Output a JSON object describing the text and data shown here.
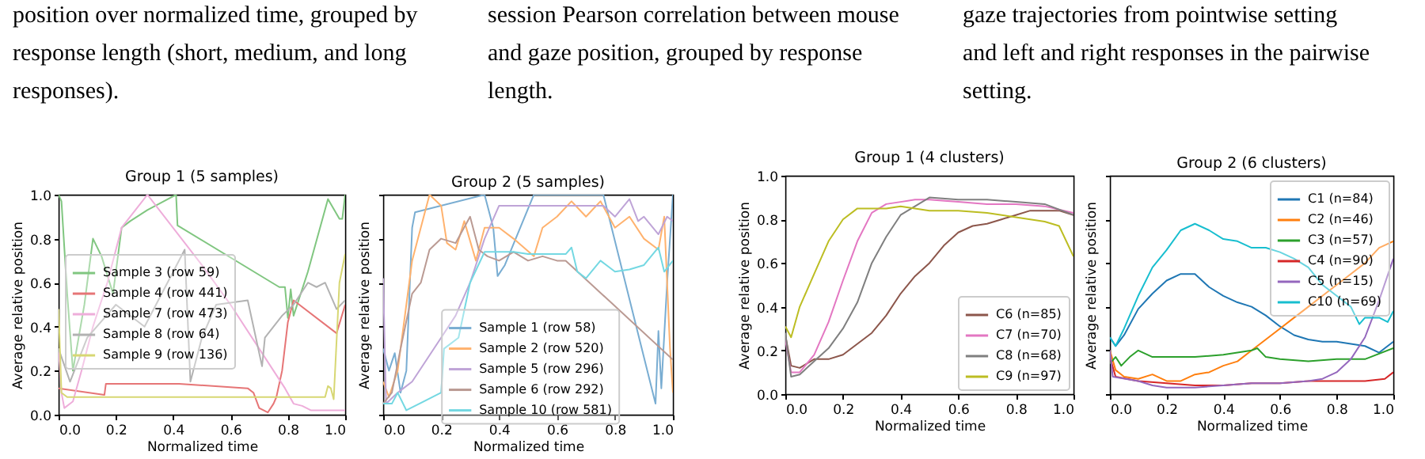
{
  "chart_data": [
    {
      "type": "other",
      "annotations": [
        "position over normalized time, grouped by response length (short, medium, and long responses).",
        "session Pearson correlation between mouse and gaze position, grouped by response length.",
        "gaze trajectories from pointwise setting and left and right responses in the pairwise setting."
      ]
    },
    {
      "type": "line",
      "title": "Group 1  (5 samples)",
      "xlabel": "Normalized time",
      "ylabel": "Average relative position",
      "xlim": [
        0,
        1
      ],
      "ylim": [
        0,
        1
      ],
      "xticks": [
        {
          "value": 0,
          "label": "0.0"
        },
        {
          "value": 0.2,
          "label": "0.2"
        },
        {
          "value": 0.4,
          "label": "0.4"
        },
        {
          "value": 0.6,
          "label": "0.6"
        },
        {
          "value": 0.8,
          "label": "0.8"
        },
        {
          "value": 1,
          "label": "1.0"
        }
      ],
      "yticks": [
        {
          "value": 0,
          "label": "0.0"
        },
        {
          "value": 0.2,
          "label": "0.2"
        },
        {
          "value": 0.4,
          "label": "0.4"
        },
        {
          "value": 0.6,
          "label": "0.6"
        },
        {
          "value": 0.8,
          "label": "0.8"
        },
        {
          "value": 1,
          "label": "1.0"
        }
      ],
      "legend": "left",
      "series": [
        {
          "name": "Sample 3 (row 59)",
          "color": "#80c680",
          "x": [
            0,
            0.01,
            0.03,
            0.05,
            0.07,
            0.09,
            0.12,
            0.15,
            0.19,
            0.22,
            0.25,
            0.31,
            0.41,
            0.415,
            0.77,
            0.79,
            0.8,
            0.81,
            0.82,
            0.87,
            0.94,
            0.98,
            0.99,
            1.0
          ],
          "values": [
            1.0,
            0.97,
            0.55,
            0.2,
            0.35,
            0.5,
            0.8,
            0.72,
            0.55,
            0.85,
            0.88,
            0.93,
            1.0,
            0.86,
            0.58,
            0.58,
            0.44,
            0.57,
            0.45,
            0.65,
            0.98,
            0.89,
            0.89,
            1.0
          ]
        },
        {
          "name": "Sample 4 (row 441)",
          "color": "#e67576",
          "x": [
            0,
            0.16,
            0.165,
            0.42,
            0.66,
            0.68,
            0.7,
            0.73,
            0.75,
            0.76,
            0.78,
            0.8,
            0.82,
            0.97,
            1.0
          ],
          "values": [
            0.12,
            0.09,
            0.14,
            0.14,
            0.12,
            0.1,
            0.03,
            0.01,
            0.05,
            0.08,
            0.2,
            0.42,
            0.52,
            0.37,
            0.5
          ]
        },
        {
          "name": "Sample 7 (row 473)",
          "color": "#eeadda",
          "x": [
            0,
            0.01,
            0.02,
            0.05,
            0.08,
            0.12,
            0.17,
            0.22,
            0.31,
            0.5,
            0.6,
            0.7,
            0.79,
            0.82,
            0.85,
            0.88,
            1.0
          ],
          "values": [
            0.3,
            0.1,
            0.03,
            0.06,
            0.2,
            0.4,
            0.6,
            0.85,
            1.0,
            0.68,
            0.5,
            0.3,
            0.12,
            0.05,
            0.04,
            0.02,
            0.02
          ]
        },
        {
          "name": "Sample 8 (row 64)",
          "color": "#b2b2b2",
          "x": [
            0,
            0.04,
            0.1,
            0.2,
            0.3,
            0.44,
            0.46,
            0.5,
            0.55,
            0.66,
            0.68,
            0.71,
            0.72,
            0.78,
            0.82,
            0.87,
            0.9,
            0.93,
            0.97,
            1.0
          ],
          "values": [
            0.3,
            0.15,
            0.35,
            0.5,
            0.4,
            0.75,
            0.15,
            0.35,
            0.5,
            0.52,
            0.4,
            0.22,
            0.35,
            0.45,
            0.5,
            0.6,
            0.58,
            0.6,
            0.48,
            0.52
          ]
        },
        {
          "name": "Sample 9 (row 136)",
          "color": "#d7d773",
          "x": [
            0,
            0.01,
            0.03,
            0.93,
            0.94,
            0.95,
            0.96,
            0.98,
            1.0
          ],
          "values": [
            0.48,
            0.1,
            0.08,
            0.08,
            0.13,
            0.12,
            0.07,
            0.6,
            0.73
          ]
        }
      ]
    },
    {
      "type": "line",
      "title": "Group 2  (5 samples)",
      "xlabel": "Normalized time",
      "ylabel": "Average relative position",
      "tick_labels": "x",
      "xlim": [
        0,
        1
      ],
      "ylim": [
        0,
        1
      ],
      "xticks": [
        {
          "value": 0,
          "label": "0.0"
        },
        {
          "value": 0.2,
          "label": "0.2"
        },
        {
          "value": 0.4,
          "label": "0.4"
        },
        {
          "value": 0.6,
          "label": "0.6"
        },
        {
          "value": 0.8,
          "label": "0.8"
        },
        {
          "value": 1,
          "label": "1.0"
        }
      ],
      "yticks": [
        {
          "value": 0,
          "label": null
        },
        {
          "value": 0.2,
          "label": null
        },
        {
          "value": 0.4,
          "label": null
        },
        {
          "value": 0.6,
          "label": null
        },
        {
          "value": 0.8,
          "label": null
        },
        {
          "value": 1,
          "label": null
        }
      ],
      "legend": "bottom",
      "series": [
        {
          "name": "Sample 1 (row 58)",
          "color": "#79add2",
          "x": [
            0,
            0.02,
            0.04,
            0.06,
            0.08,
            0.1,
            0.11,
            0.35,
            0.38,
            0.395,
            0.42,
            0.52,
            0.76,
            0.94,
            0.95,
            0.96,
            0.98,
            1.0
          ],
          "values": [
            0.3,
            0.2,
            0.28,
            0.1,
            0.2,
            0.85,
            0.92,
            1.0,
            0.85,
            0.63,
            0.68,
            1.0,
            1.0,
            0.05,
            0.38,
            0.12,
            0.6,
            1.0
          ]
        },
        {
          "name": "Sample 2 (row 520)",
          "color": "#ffb26e",
          "x": [
            0,
            0.02,
            0.05,
            0.08,
            0.1,
            0.12,
            0.14,
            0.16,
            0.2,
            0.22,
            0.25,
            0.28,
            0.32,
            0.35,
            0.4,
            0.45,
            0.52,
            0.55,
            0.6,
            0.65,
            0.7,
            0.75,
            0.8,
            0.85,
            0.9,
            0.95,
            0.97,
            0.99,
            1.0
          ],
          "values": [
            0.15,
            0.08,
            0.2,
            0.5,
            0.7,
            0.8,
            0.9,
            1.0,
            0.95,
            0.78,
            0.75,
            0.88,
            0.7,
            0.85,
            0.85,
            0.8,
            0.72,
            0.85,
            0.9,
            0.97,
            0.9,
            0.97,
            0.85,
            0.9,
            0.8,
            0.75,
            0.9,
            0.3,
            0.1
          ]
        },
        {
          "name": "Sample 5 (row 296)",
          "color": "#bfa4d7",
          "x": [
            0,
            0.01,
            0.05,
            0.1,
            0.15,
            0.2,
            0.25,
            0.3,
            0.35,
            0.4,
            0.45,
            0.76,
            0.8,
            0.85,
            0.88,
            0.9,
            0.95,
            0.98,
            1.0
          ],
          "values": [
            0.62,
            0.05,
            0.1,
            0.15,
            0.25,
            0.35,
            0.45,
            0.6,
            0.8,
            0.95,
            0.95,
            0.95,
            0.9,
            0.98,
            0.88,
            0.9,
            0.82,
            0.9,
            0.88
          ]
        },
        {
          "name": "Sample 6 (row 292)",
          "color": "#ba9a93",
          "x": [
            0,
            0.03,
            0.06,
            0.1,
            0.13,
            0.16,
            0.2,
            0.25,
            0.3,
            0.33,
            0.36,
            0.4,
            0.45,
            0.5,
            0.55,
            0.6,
            0.63,
            1.0
          ],
          "values": [
            0.05,
            0.1,
            0.3,
            0.55,
            0.6,
            0.75,
            0.8,
            0.78,
            0.9,
            0.75,
            0.72,
            0.7,
            0.74,
            0.7,
            0.72,
            0.7,
            0.7,
            0.25
          ]
        },
        {
          "name": "Sample 10 (row 581)",
          "color": "#74d8e2",
          "x": [
            0,
            0.03,
            0.05,
            0.08,
            0.2,
            0.21,
            0.26,
            0.3,
            0.35,
            0.45,
            0.5,
            0.63,
            0.65,
            0.67,
            0.7,
            0.75,
            0.8,
            0.85,
            0.9,
            0.95,
            0.97,
            1.0
          ],
          "values": [
            0.05,
            0.05,
            0.1,
            0.02,
            0.1,
            0.3,
            0.35,
            0.6,
            0.74,
            0.74,
            0.73,
            0.73,
            0.76,
            0.65,
            0.62,
            0.7,
            0.65,
            0.66,
            0.68,
            0.76,
            0.65,
            0.7
          ]
        }
      ]
    },
    {
      "type": "line",
      "title": "Group 1  (4 clusters)",
      "xlabel": "Normalized time",
      "ylabel": "Average relative position",
      "xlim": [
        0,
        1
      ],
      "ylim": [
        0,
        1
      ],
      "xticks": [
        {
          "value": 0,
          "label": "0.0"
        },
        {
          "value": 0.2,
          "label": "0.2"
        },
        {
          "value": 0.4,
          "label": "0.4"
        },
        {
          "value": 0.6,
          "label": "0.6"
        },
        {
          "value": 0.8,
          "label": "0.8"
        },
        {
          "value": 1,
          "label": "1.0"
        }
      ],
      "yticks": [
        {
          "value": 0,
          "label": "0.0"
        },
        {
          "value": 0.2,
          "label": "0.2"
        },
        {
          "value": 0.4,
          "label": "0.4"
        },
        {
          "value": 0.6,
          "label": "0.6"
        },
        {
          "value": 0.8,
          "label": "0.8"
        },
        {
          "value": 1,
          "label": "1.0"
        }
      ],
      "legend": "bottom right",
      "series": [
        {
          "name": "C6 (n=85)",
          "color": "#8c564b",
          "x": [
            0,
            0.02,
            0.05,
            0.1,
            0.15,
            0.2,
            0.25,
            0.3,
            0.35,
            0.4,
            0.45,
            0.5,
            0.55,
            0.6,
            0.65,
            0.7,
            0.75,
            0.8,
            0.85,
            0.9,
            0.95,
            1.0
          ],
          "values": [
            0.27,
            0.13,
            0.12,
            0.16,
            0.16,
            0.18,
            0.23,
            0.28,
            0.36,
            0.46,
            0.54,
            0.6,
            0.68,
            0.74,
            0.77,
            0.78,
            0.8,
            0.82,
            0.84,
            0.84,
            0.84,
            0.82
          ]
        },
        {
          "name": "C7 (n=70)",
          "color": "#e377c2",
          "x": [
            0,
            0.02,
            0.05,
            0.1,
            0.15,
            0.2,
            0.25,
            0.3,
            0.35,
            0.4,
            0.45,
            0.5,
            0.6,
            0.7,
            0.8,
            0.9,
            1.0
          ],
          "values": [
            0.25,
            0.1,
            0.1,
            0.18,
            0.33,
            0.52,
            0.7,
            0.83,
            0.87,
            0.88,
            0.89,
            0.89,
            0.88,
            0.87,
            0.87,
            0.86,
            0.83
          ]
        },
        {
          "name": "C8 (n=68)",
          "color": "#7f7f7f",
          "x": [
            0,
            0.02,
            0.05,
            0.1,
            0.15,
            0.2,
            0.25,
            0.3,
            0.35,
            0.4,
            0.45,
            0.5,
            0.6,
            0.7,
            0.8,
            0.9,
            1.0
          ],
          "values": [
            0.28,
            0.08,
            0.09,
            0.15,
            0.21,
            0.3,
            0.42,
            0.6,
            0.72,
            0.82,
            0.86,
            0.9,
            0.89,
            0.89,
            0.88,
            0.87,
            0.82
          ]
        },
        {
          "name": "C9 (n=97)",
          "color": "#bcbd22",
          "x": [
            0,
            0.02,
            0.05,
            0.1,
            0.15,
            0.2,
            0.25,
            0.3,
            0.35,
            0.4,
            0.5,
            0.6,
            0.7,
            0.8,
            0.9,
            0.95,
            1.0
          ],
          "values": [
            0.31,
            0.26,
            0.4,
            0.55,
            0.7,
            0.8,
            0.85,
            0.85,
            0.85,
            0.86,
            0.84,
            0.84,
            0.83,
            0.81,
            0.79,
            0.77,
            0.63
          ]
        }
      ]
    },
    {
      "type": "line",
      "title": "Group 2  (6 clusters)",
      "xlabel": "Normalized time",
      "ylabel": "Average relative position",
      "tick_labels": "x",
      "xlim": [
        0,
        1
      ],
      "ylim": [
        0,
        1
      ],
      "xticks": [
        {
          "value": 0,
          "label": "0.0"
        },
        {
          "value": 0.2,
          "label": "0.2"
        },
        {
          "value": 0.4,
          "label": "0.4"
        },
        {
          "value": 0.6,
          "label": "0.6"
        },
        {
          "value": 0.8,
          "label": "0.8"
        },
        {
          "value": 1,
          "label": "1.0"
        }
      ],
      "yticks": [
        {
          "value": 0,
          "label": null
        },
        {
          "value": 0.2,
          "label": null
        },
        {
          "value": 0.4,
          "label": null
        },
        {
          "value": 0.6,
          "label": null
        },
        {
          "value": 0.8,
          "label": null
        },
        {
          "value": 1,
          "label": null
        }
      ],
      "legend": "top right",
      "series": [
        {
          "name": "C1 (n=84)",
          "color": "#1f77b4",
          "x": [
            0,
            0.02,
            0.05,
            0.1,
            0.15,
            0.2,
            0.25,
            0.3,
            0.35,
            0.4,
            0.45,
            0.5,
            0.55,
            0.6,
            0.65,
            0.7,
            0.75,
            0.8,
            0.85,
            0.9,
            0.95,
            1.0
          ],
          "values": [
            0.26,
            0.22,
            0.27,
            0.39,
            0.46,
            0.52,
            0.55,
            0.55,
            0.49,
            0.45,
            0.42,
            0.4,
            0.36,
            0.31,
            0.27,
            0.25,
            0.24,
            0.24,
            0.23,
            0.22,
            0.19,
            0.24
          ]
        },
        {
          "name": "C2 (n=46)",
          "color": "#ff7f0e",
          "x": [
            0,
            0.02,
            0.05,
            0.1,
            0.15,
            0.2,
            0.25,
            0.3,
            0.35,
            0.4,
            0.45,
            0.5,
            0.55,
            0.6,
            0.65,
            0.7,
            0.75,
            0.8,
            0.85,
            0.9,
            0.95,
            1.0
          ],
          "values": [
            0.2,
            0.11,
            0.08,
            0.07,
            0.09,
            0.06,
            0.06,
            0.09,
            0.1,
            0.13,
            0.15,
            0.2,
            0.25,
            0.3,
            0.35,
            0.4,
            0.45,
            0.5,
            0.55,
            0.6,
            0.67,
            0.7
          ]
        },
        {
          "name": "C3 (n=57)",
          "color": "#2ca02c",
          "x": [
            0,
            0.02,
            0.04,
            0.07,
            0.1,
            0.15,
            0.2,
            0.3,
            0.4,
            0.45,
            0.5,
            0.52,
            0.55,
            0.6,
            0.7,
            0.8,
            0.9,
            1.0
          ],
          "values": [
            0.14,
            0.17,
            0.13,
            0.17,
            0.2,
            0.17,
            0.17,
            0.17,
            0.18,
            0.19,
            0.2,
            0.21,
            0.17,
            0.16,
            0.15,
            0.16,
            0.16,
            0.21
          ]
        },
        {
          "name": "C4 (n=90)",
          "color": "#d62728",
          "x": [
            0,
            0.02,
            0.1,
            0.2,
            0.3,
            0.4,
            0.5,
            0.6,
            0.7,
            0.8,
            0.9,
            0.97,
            1.0
          ],
          "values": [
            0.17,
            0.08,
            0.06,
            0.05,
            0.04,
            0.04,
            0.05,
            0.05,
            0.06,
            0.06,
            0.06,
            0.07,
            0.1
          ]
        },
        {
          "name": "C5 (n=15)",
          "color": "#9467bd",
          "x": [
            0,
            0.01,
            0.1,
            0.15,
            0.2,
            0.3,
            0.4,
            0.5,
            0.6,
            0.7,
            0.75,
            0.8,
            0.85,
            0.9,
            0.95,
            1.0
          ],
          "values": [
            0.2,
            0.08,
            0.06,
            0.04,
            0.03,
            0.03,
            0.04,
            0.05,
            0.05,
            0.06,
            0.07,
            0.1,
            0.16,
            0.26,
            0.43,
            0.62
          ]
        },
        {
          "name": "C10 (n=69)",
          "color": "#17becf",
          "x": [
            0,
            0.02,
            0.05,
            0.1,
            0.15,
            0.2,
            0.25,
            0.3,
            0.35,
            0.4,
            0.45,
            0.5,
            0.55,
            0.6,
            0.65,
            0.7,
            0.75,
            0.8,
            0.85,
            0.88,
            0.9,
            0.95,
            0.98,
            1.0
          ],
          "values": [
            0.26,
            0.22,
            0.3,
            0.45,
            0.58,
            0.66,
            0.75,
            0.78,
            0.75,
            0.71,
            0.7,
            0.67,
            0.67,
            0.65,
            0.62,
            0.58,
            0.5,
            0.45,
            0.4,
            0.32,
            0.35,
            0.35,
            0.33,
            0.38
          ]
        }
      ]
    }
  ]
}
